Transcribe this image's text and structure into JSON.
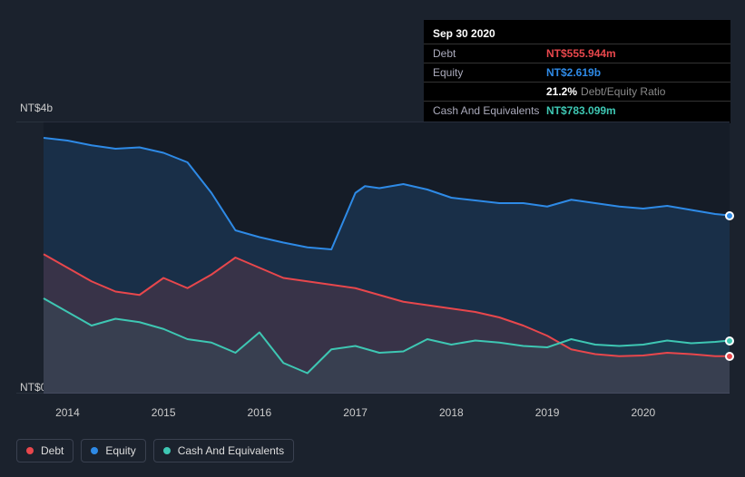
{
  "background_color": "#1b222d",
  "tooltip": {
    "title": "Sep 30 2020",
    "rows": [
      {
        "label": "Debt",
        "value": "NT$555.944m",
        "color": "#e8474c"
      },
      {
        "label": "Equity",
        "value": "NT$2.619b",
        "color": "#2e8ae6"
      },
      {
        "label": "",
        "value": "21.2%",
        "suffix": "Debt/Equity Ratio",
        "color": "#ffffff"
      },
      {
        "label": "Cash And Equivalents",
        "value": "NT$783.099m",
        "color": "#3ec7b3"
      }
    ]
  },
  "chart": {
    "type": "area",
    "plot_bg": "#151c27",
    "plot_border": "#3a4150",
    "xlim": [
      2013.75,
      2020.9
    ],
    "ylim": [
      0,
      4
    ],
    "ylabel_top": "NT$4b",
    "ylabel_bottom": "NT$0",
    "xticks": [
      2014,
      2015,
      2016,
      2017,
      2018,
      2019,
      2020
    ],
    "series": [
      {
        "name": "Equity",
        "color": "#2e8ae6",
        "fill": "rgba(46,138,230,0.18)",
        "stroke_width": 2,
        "end_marker": true,
        "points": [
          [
            2013.75,
            3.76
          ],
          [
            2014.0,
            3.72
          ],
          [
            2014.25,
            3.65
          ],
          [
            2014.5,
            3.6
          ],
          [
            2014.75,
            3.62
          ],
          [
            2015.0,
            3.54
          ],
          [
            2015.25,
            3.4
          ],
          [
            2015.5,
            2.95
          ],
          [
            2015.75,
            2.4
          ],
          [
            2016.0,
            2.3
          ],
          [
            2016.25,
            2.22
          ],
          [
            2016.5,
            2.15
          ],
          [
            2016.75,
            2.12
          ],
          [
            2017.0,
            2.95
          ],
          [
            2017.1,
            3.05
          ],
          [
            2017.25,
            3.02
          ],
          [
            2017.5,
            3.08
          ],
          [
            2017.75,
            3.0
          ],
          [
            2018.0,
            2.88
          ],
          [
            2018.25,
            2.84
          ],
          [
            2018.5,
            2.8
          ],
          [
            2018.75,
            2.8
          ],
          [
            2019.0,
            2.75
          ],
          [
            2019.25,
            2.85
          ],
          [
            2019.5,
            2.8
          ],
          [
            2019.75,
            2.75
          ],
          [
            2020.0,
            2.72
          ],
          [
            2020.25,
            2.76
          ],
          [
            2020.5,
            2.7
          ],
          [
            2020.75,
            2.64
          ],
          [
            2020.9,
            2.62
          ]
        ]
      },
      {
        "name": "Debt",
        "color": "#e8474c",
        "fill": "rgba(232,71,76,0.15)",
        "stroke_width": 2,
        "end_marker": true,
        "points": [
          [
            2013.75,
            2.05
          ],
          [
            2014.0,
            1.85
          ],
          [
            2014.25,
            1.65
          ],
          [
            2014.5,
            1.5
          ],
          [
            2014.75,
            1.45
          ],
          [
            2015.0,
            1.7
          ],
          [
            2015.25,
            1.55
          ],
          [
            2015.5,
            1.75
          ],
          [
            2015.75,
            2.0
          ],
          [
            2016.0,
            1.85
          ],
          [
            2016.25,
            1.7
          ],
          [
            2016.5,
            1.65
          ],
          [
            2016.75,
            1.6
          ],
          [
            2017.0,
            1.55
          ],
          [
            2017.25,
            1.45
          ],
          [
            2017.5,
            1.35
          ],
          [
            2017.75,
            1.3
          ],
          [
            2018.0,
            1.25
          ],
          [
            2018.25,
            1.2
          ],
          [
            2018.5,
            1.12
          ],
          [
            2018.75,
            1.0
          ],
          [
            2019.0,
            0.85
          ],
          [
            2019.25,
            0.65
          ],
          [
            2019.5,
            0.58
          ],
          [
            2019.75,
            0.55
          ],
          [
            2020.0,
            0.56
          ],
          [
            2020.25,
            0.6
          ],
          [
            2020.5,
            0.58
          ],
          [
            2020.75,
            0.55
          ],
          [
            2020.9,
            0.55
          ]
        ]
      },
      {
        "name": "Cash And Equivalents",
        "color": "#3ec7b3",
        "fill": "rgba(62,199,179,0.08)",
        "stroke_width": 2,
        "end_marker": true,
        "points": [
          [
            2013.75,
            1.4
          ],
          [
            2014.0,
            1.2
          ],
          [
            2014.25,
            1.0
          ],
          [
            2014.5,
            1.1
          ],
          [
            2014.75,
            1.05
          ],
          [
            2015.0,
            0.95
          ],
          [
            2015.25,
            0.8
          ],
          [
            2015.5,
            0.75
          ],
          [
            2015.75,
            0.6
          ],
          [
            2016.0,
            0.9
          ],
          [
            2016.25,
            0.45
          ],
          [
            2016.5,
            0.3
          ],
          [
            2016.75,
            0.65
          ],
          [
            2017.0,
            0.7
          ],
          [
            2017.25,
            0.6
          ],
          [
            2017.5,
            0.62
          ],
          [
            2017.75,
            0.8
          ],
          [
            2018.0,
            0.72
          ],
          [
            2018.25,
            0.78
          ],
          [
            2018.5,
            0.75
          ],
          [
            2018.75,
            0.7
          ],
          [
            2019.0,
            0.68
          ],
          [
            2019.25,
            0.8
          ],
          [
            2019.5,
            0.72
          ],
          [
            2019.75,
            0.7
          ],
          [
            2020.0,
            0.72
          ],
          [
            2020.25,
            0.78
          ],
          [
            2020.5,
            0.74
          ],
          [
            2020.75,
            0.76
          ],
          [
            2020.9,
            0.78
          ]
        ]
      }
    ]
  },
  "legend": [
    {
      "label": "Debt",
      "color": "#e8474c"
    },
    {
      "label": "Equity",
      "color": "#2e8ae6"
    },
    {
      "label": "Cash And Equivalents",
      "color": "#3ec7b3"
    }
  ]
}
